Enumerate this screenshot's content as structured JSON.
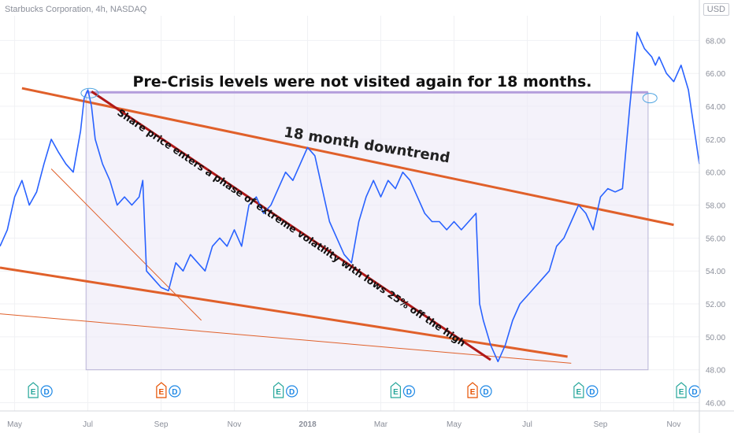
{
  "header": {
    "symbol_info": "Starbucks Corporation, 4h, NASDAQ",
    "currency": "USD"
  },
  "colors": {
    "price_line": "#2962ff",
    "trendline": "#e0602a",
    "volatility_line": "#b01818",
    "box_fill": "#ece9f7",
    "box_border": "#b7b3d6",
    "crisis_level": "#b39ddb",
    "earnings_E": "#26a69a",
    "earnings_E_alt": "#e65100",
    "dividend_D": "#1e88e5",
    "axis_text": "#8a8e99"
  },
  "chart_data": {
    "type": "line",
    "title": "",
    "xlabel": "",
    "ylabel": "",
    "x_ticks": [
      "May",
      "Jul",
      "Sep",
      "Nov",
      "2018",
      "Mar",
      "May",
      "Jul",
      "Sep",
      "Nov"
    ],
    "y_ticks": [
      "68.00",
      "66.00",
      "64.00",
      "62.00",
      "60.00",
      "58.00",
      "56.00",
      "54.00",
      "52.00",
      "50.00",
      "48.00",
      "46.00"
    ],
    "ylim": [
      45.5,
      69.5
    ],
    "x_range_months": [
      -0.8,
      18.3
    ],
    "grid": true,
    "series": [
      {
        "values_x_months": [
          -0.8,
          -0.6,
          -0.4,
          -0.2,
          0,
          0.2,
          0.4,
          0.6,
          0.8,
          1.0,
          1.2,
          1.4,
          1.5,
          1.6,
          1.7,
          1.8,
          2.0,
          2.2,
          2.4,
          2.6,
          2.8,
          3.0,
          3.1,
          3.2,
          3.4,
          3.6,
          3.8,
          4.0,
          4.2,
          4.4,
          4.6,
          4.8,
          5.0,
          5.2,
          5.4,
          5.6,
          5.8,
          6.0,
          6.2,
          6.4,
          6.6,
          6.8,
          7.0,
          7.2,
          7.4,
          7.6,
          7.8,
          8.0,
          8.2,
          8.4,
          8.6,
          8.8,
          9.0,
          9.2,
          9.4,
          9.6,
          9.8,
          10.0,
          10.2,
          10.4,
          10.6,
          10.8,
          11.0,
          11.2,
          11.4,
          11.6,
          11.8,
          12.0,
          12.2,
          12.3,
          12.4,
          12.6,
          12.8,
          13.0,
          13.2,
          13.4,
          13.6,
          13.8,
          14.0,
          14.2,
          14.4,
          14.6,
          14.8,
          15.0,
          15.2,
          15.4,
          15.6,
          15.8,
          16.0,
          16.2,
          16.4,
          16.6,
          16.8,
          17.0,
          17.1,
          17.2,
          17.4,
          17.6,
          17.8,
          18.0,
          18.1,
          18.2,
          18.3
        ],
        "values": [
          55.5,
          56.5,
          58.5,
          59.5,
          58.0,
          58.8,
          60.5,
          62.0,
          61.2,
          60.5,
          60.0,
          62.5,
          64.5,
          65.0,
          64.0,
          62.0,
          60.5,
          59.5,
          58.0,
          58.5,
          58.0,
          58.5,
          59.5,
          54.0,
          53.5,
          53.0,
          52.8,
          54.5,
          54.0,
          55.0,
          54.5,
          54.0,
          55.5,
          56.0,
          55.5,
          56.5,
          55.5,
          58.0,
          58.5,
          57.5,
          58.0,
          59.0,
          60.0,
          59.5,
          60.5,
          61.5,
          61.0,
          59.0,
          57.0,
          56.0,
          55.0,
          54.5,
          57.0,
          58.5,
          59.5,
          58.5,
          59.5,
          59.0,
          60.0,
          59.5,
          58.5,
          57.5,
          57.0,
          57.0,
          56.5,
          57.0,
          56.5,
          57.0,
          57.5,
          52.0,
          51.0,
          49.5,
          48.5,
          49.5,
          51.0,
          52.0,
          52.5,
          53.0,
          53.5,
          54.0,
          55.5,
          56.0,
          57.0,
          58.0,
          57.5,
          56.5,
          58.5,
          59.0,
          58.8,
          59.0,
          64.0,
          68.5,
          67.5,
          67.0,
          66.5,
          67.0,
          66.0,
          65.5,
          66.5,
          65.0,
          63.5,
          62.0,
          60.5
        ]
      }
    ],
    "annotations": {
      "crisis_text": "Pre-Crisis levels were not visited again for 18 months.",
      "downtrend_text": "18 month downtrend",
      "volatility_text": "Share price enters a phase of extreme volatility with lows 25% off the high"
    },
    "events": [
      {
        "x_month": 0.3,
        "letters": [
          "E",
          "D"
        ],
        "e_color": "teal"
      },
      {
        "x_month": 3.8,
        "letters": [
          "E",
          "D"
        ],
        "e_color": "orange"
      },
      {
        "x_month": 7.0,
        "letters": [
          "E",
          "D"
        ],
        "e_color": "teal"
      },
      {
        "x_month": 10.2,
        "letters": [
          "E",
          "D"
        ],
        "e_color": "teal"
      },
      {
        "x_month": 12.3,
        "letters": [
          "E",
          "D"
        ],
        "e_color": "orange"
      },
      {
        "x_month": 15.2,
        "letters": [
          "E",
          "D"
        ],
        "e_color": "teal"
      },
      {
        "x_month": 18.0,
        "letters": [
          "E",
          "D"
        ],
        "e_color": "teal"
      }
    ]
  }
}
